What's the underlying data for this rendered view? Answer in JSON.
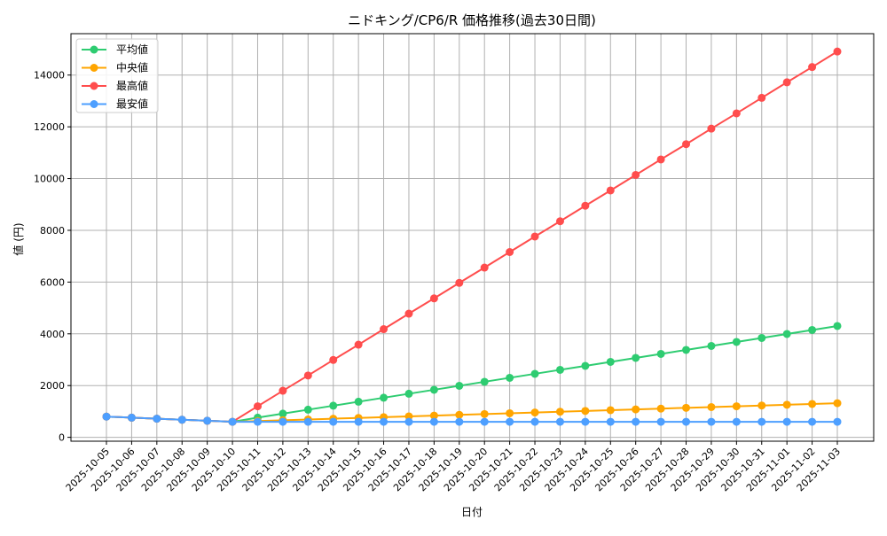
{
  "chart_data": {
    "type": "line",
    "title": "ニドキング/CP6/R 価格推移(過去30日間)",
    "xlabel": "日付",
    "ylabel": "値 (円)",
    "ylim": [
      -150,
      15600
    ],
    "yticks": [
      0,
      2000,
      4000,
      6000,
      8000,
      10000,
      12000,
      14000
    ],
    "grid": true,
    "legend_position": "top-left",
    "x": [
      "2025-10-05",
      "2025-10-06",
      "2025-10-07",
      "2025-10-08",
      "2025-10-09",
      "2025-10-10",
      "2025-10-11",
      "2025-10-12",
      "2025-10-13",
      "2025-10-14",
      "2025-10-15",
      "2025-10-16",
      "2025-10-17",
      "2025-10-18",
      "2025-10-19",
      "2025-10-20",
      "2025-10-21",
      "2025-10-22",
      "2025-10-23",
      "2025-10-24",
      "2025-10-25",
      "2025-10-26",
      "2025-10-27",
      "2025-10-28",
      "2025-10-29",
      "2025-10-30",
      "2025-10-31",
      "2025-11-01",
      "2025-11-02",
      "2025-11-03"
    ],
    "series": [
      {
        "name": "平均値",
        "color": "#2ecc71",
        "values": [
          800,
          760,
          720,
          680,
          640,
          600,
          760,
          914,
          1068,
          1222,
          1376,
          1530,
          1684,
          1838,
          1992,
          2146,
          2300,
          2454,
          2608,
          2762,
          2916,
          3070,
          3224,
          3378,
          3532,
          3686,
          3840,
          3994,
          4148,
          4302
        ]
      },
      {
        "name": "中央値",
        "color": "#ffa500",
        "values": [
          800,
          760,
          720,
          680,
          640,
          600,
          630,
          660,
          690,
          720,
          750,
          780,
          810,
          840,
          870,
          900,
          930,
          960,
          990,
          1020,
          1050,
          1080,
          1110,
          1140,
          1170,
          1200,
          1230,
          1260,
          1290,
          1320
        ]
      },
      {
        "name": "最高値",
        "color": "#ff4d4d",
        "values": [
          800,
          760,
          720,
          680,
          640,
          600,
          1200,
          1800,
          2390,
          2990,
          3580,
          4180,
          4780,
          5370,
          5970,
          6560,
          7160,
          7760,
          8350,
          8950,
          9540,
          10140,
          10740,
          11330,
          11930,
          12520,
          13120,
          13720,
          14310,
          14910
        ]
      },
      {
        "name": "最安値",
        "color": "#4d9fff",
        "values": [
          800,
          760,
          720,
          680,
          640,
          600,
          600,
          600,
          600,
          600,
          600,
          600,
          600,
          600,
          600,
          600,
          600,
          600,
          600,
          600,
          600,
          600,
          600,
          600,
          600,
          600,
          600,
          600,
          600,
          600
        ]
      }
    ]
  }
}
